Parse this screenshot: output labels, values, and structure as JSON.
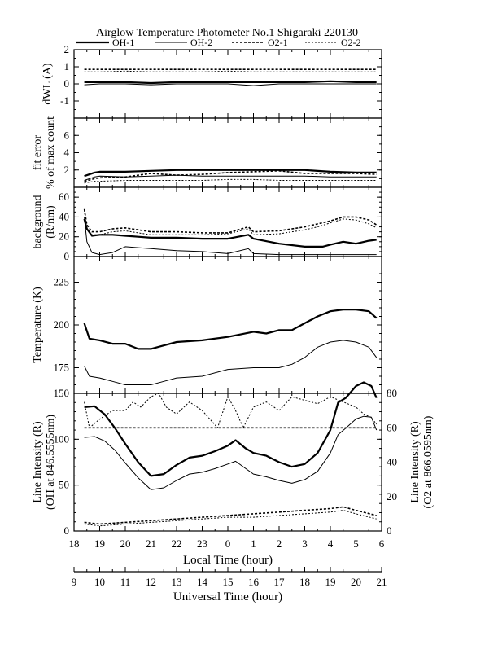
{
  "title": "Airglow Temperature Photometer No.1  Shigaraki  220130",
  "legend": [
    {
      "label": "OH-1",
      "style": "thick-solid"
    },
    {
      "label": "OH-2",
      "style": "thin-solid"
    },
    {
      "label": "O2-1",
      "style": "thick-dashed"
    },
    {
      "label": "O2-2",
      "style": "thin-dashed"
    }
  ],
  "axes": {
    "local_time_label": "Local Time (hour)",
    "local_time_ticks": [
      "18",
      "19",
      "20",
      "21",
      "22",
      "23",
      "0",
      "1",
      "2",
      "3",
      "4",
      "5",
      "6"
    ],
    "universal_time_label": "Universal Time (hour)",
    "universal_time_ticks": [
      "9",
      "10",
      "11",
      "12",
      "13",
      "14",
      "15",
      "16",
      "17",
      "18",
      "19",
      "20",
      "21"
    ]
  },
  "chart_data": [
    {
      "type": "line",
      "panel": "dWL",
      "ylabel": "dWL (A)",
      "ylim": [
        -2,
        2
      ],
      "yticks": [
        "2",
        "1",
        "0",
        "-1"
      ],
      "x_unit": "Universal Time (hour)",
      "series": [
        {
          "name": "OH-1",
          "x": [
            9.4,
            10,
            11,
            12,
            13,
            14,
            15,
            16,
            17,
            18,
            19,
            20,
            20.8
          ],
          "values": [
            0.1,
            0.1,
            0.1,
            0.05,
            0.1,
            0.1,
            0.1,
            0.1,
            0.1,
            0.1,
            0.15,
            0.1,
            0.1
          ]
        },
        {
          "name": "OH-2",
          "x": [
            9.4,
            10,
            11,
            12,
            13,
            14,
            15,
            16,
            17,
            18,
            19,
            20,
            20.8
          ],
          "values": [
            -0.05,
            0,
            0,
            -0.05,
            0,
            0,
            0,
            -0.1,
            0,
            0,
            0,
            0,
            0
          ]
        },
        {
          "name": "O2-1",
          "x": [
            9.4,
            10,
            11,
            12,
            13,
            14,
            15,
            16,
            17,
            18,
            19,
            20,
            20.8
          ],
          "values": [
            0.85,
            0.85,
            0.85,
            0.85,
            0.85,
            0.85,
            0.85,
            0.85,
            0.85,
            0.85,
            0.85,
            0.85,
            0.85
          ]
        },
        {
          "name": "O2-2",
          "x": [
            9.4,
            10,
            11,
            12,
            13,
            14,
            15,
            16,
            17,
            18,
            19,
            20,
            20.8
          ],
          "values": [
            0.7,
            0.7,
            0.75,
            0.7,
            0.7,
            0.7,
            0.75,
            0.7,
            0.7,
            0.7,
            0.7,
            0.7,
            0.7
          ]
        }
      ]
    },
    {
      "type": "line",
      "panel": "fit-error",
      "ylabel": "fit error",
      "ylabel2": "% of max count",
      "ylim": [
        0,
        8
      ],
      "yticks": [
        "6",
        "4",
        "2"
      ],
      "x_unit": "Universal Time (hour)",
      "series": [
        {
          "name": "OH-1",
          "x": [
            9.4,
            9.8,
            10,
            11,
            12,
            13,
            14,
            15,
            16,
            17,
            18,
            19,
            20,
            20.8
          ],
          "values": [
            1.3,
            1.7,
            1.8,
            1.8,
            1.9,
            2.0,
            2.0,
            2.0,
            2.0,
            2.0,
            2.0,
            1.8,
            1.7,
            1.7
          ]
        },
        {
          "name": "OH-2",
          "x": [
            9.4,
            9.8,
            10,
            11,
            12,
            13,
            14,
            15,
            16,
            17,
            18,
            19,
            20,
            20.8
          ],
          "values": [
            0.8,
            1.2,
            1.3,
            1.2,
            1.3,
            1.4,
            1.3,
            1.3,
            1.3,
            1.3,
            1.3,
            1.2,
            1.2,
            1.2
          ]
        },
        {
          "name": "O2-1",
          "x": [
            9.4,
            9.8,
            10,
            11,
            12,
            13,
            14,
            15,
            16,
            17,
            18,
            19,
            20,
            20.8
          ],
          "values": [
            0.7,
            1.0,
            1.1,
            1.2,
            1.6,
            1.4,
            1.5,
            1.7,
            1.8,
            1.9,
            1.6,
            1.6,
            1.6,
            1.5
          ]
        },
        {
          "name": "O2-2",
          "x": [
            9.4,
            9.8,
            10,
            11,
            12,
            13,
            14,
            15,
            16,
            17,
            18,
            19,
            20,
            20.8
          ],
          "values": [
            0.5,
            0.7,
            0.7,
            0.8,
            0.8,
            0.8,
            0.8,
            0.9,
            0.9,
            0.8,
            0.8,
            0.8,
            0.8,
            0.8
          ]
        }
      ]
    },
    {
      "type": "line",
      "panel": "background",
      "ylabel": "background",
      "ylabel2": "(R/nm)",
      "ylim": [
        0,
        70
      ],
      "yticks": [
        "60",
        "40",
        "20",
        "0"
      ],
      "x_unit": "Universal Time (hour)",
      "series": [
        {
          "name": "OH-1",
          "x": [
            9.4,
            9.5,
            9.7,
            10,
            10.5,
            11,
            11.5,
            12,
            13,
            14,
            15,
            15.8,
            16,
            17,
            18,
            18.7,
            19,
            19.5,
            20,
            20.5,
            20.8
          ],
          "values": [
            38,
            28,
            21,
            22,
            22,
            21,
            20,
            19,
            19,
            18,
            18,
            22,
            18,
            13,
            10,
            10,
            12,
            15,
            13,
            16,
            17
          ]
        },
        {
          "name": "OH-2",
          "x": [
            9.4,
            9.5,
            9.7,
            10,
            10.5,
            11,
            11.5,
            12,
            13,
            14,
            15,
            15.8,
            16,
            17,
            18,
            19,
            20,
            20.8
          ],
          "values": [
            40,
            15,
            4,
            2,
            4,
            10,
            9,
            8,
            6,
            5,
            3,
            8,
            3,
            2,
            2,
            2,
            2,
            2
          ]
        },
        {
          "name": "O2-1",
          "x": [
            9.4,
            9.5,
            9.7,
            10,
            10.5,
            11,
            11.5,
            12,
            13,
            14,
            15,
            15.8,
            16,
            17,
            18,
            18.5,
            19,
            19.5,
            20,
            20.5,
            20.8
          ],
          "values": [
            48,
            32,
            25,
            25,
            28,
            29,
            27,
            25,
            25,
            24,
            24,
            30,
            25,
            26,
            30,
            33,
            36,
            40,
            40,
            37,
            32
          ]
        },
        {
          "name": "O2-2",
          "x": [
            9.4,
            9.5,
            9.7,
            10,
            10.5,
            11,
            11.5,
            12,
            13,
            14,
            15,
            15.8,
            16,
            17,
            18,
            18.5,
            19,
            19.5,
            20,
            20.5,
            20.8
          ],
          "values": [
            47,
            28,
            22,
            22,
            25,
            26,
            24,
            22,
            22,
            22,
            23,
            28,
            22,
            23,
            27,
            30,
            34,
            38,
            37,
            33,
            29
          ]
        }
      ]
    },
    {
      "type": "line",
      "panel": "temperature",
      "ylabel": "Temperature (K)",
      "ylim": [
        160,
        240
      ],
      "yticks": [
        "225",
        "200",
        "175"
      ],
      "x_unit": "Universal Time (hour)",
      "series": [
        {
          "name": "OH-1",
          "x": [
            9.4,
            9.6,
            10,
            10.5,
            11,
            11.5,
            12,
            12.5,
            13,
            14,
            15,
            16,
            16.5,
            17,
            17.5,
            18,
            18.5,
            19,
            19.5,
            20,
            20.5,
            20.8
          ],
          "values": [
            201,
            192,
            191,
            189,
            189,
            186,
            186,
            188,
            190,
            191,
            193,
            196,
            195,
            197,
            197,
            201,
            205,
            208,
            209,
            209,
            208,
            204
          ]
        },
        {
          "name": "OH-2",
          "x": [
            9.4,
            9.6,
            10,
            10.5,
            11,
            11.5,
            12,
            12.5,
            13,
            14,
            15,
            16,
            16.5,
            17,
            17.5,
            18,
            18.5,
            19,
            19.5,
            20,
            20.5,
            20.8
          ],
          "values": [
            176,
            170,
            169,
            167,
            165,
            165,
            165,
            167,
            169,
            170,
            174,
            175,
            175,
            175,
            177,
            181,
            187,
            190,
            191,
            190,
            187,
            181
          ]
        }
      ]
    },
    {
      "type": "line",
      "panel": "line-intensity",
      "ylabel": "Line Intensity (R)",
      "ylabel2": "(OH at 846.5555nm)",
      "ylim": [
        0,
        150
      ],
      "yticks": [
        "150",
        "100",
        "50",
        "0"
      ],
      "y2label": "Line Intensity (R)",
      "y2label2": "(O2 at 866.0595nm)",
      "y2lim": [
        0,
        80
      ],
      "y2ticks": [
        "80",
        "60",
        "40",
        "20",
        "0"
      ],
      "x_unit": "Universal Time (hour)",
      "series": [
        {
          "name": "OH-1",
          "axis": "left",
          "x": [
            9.4,
            9.8,
            10.2,
            10.6,
            11,
            11.5,
            12,
            12.5,
            13,
            13.5,
            14,
            14.5,
            15,
            15.3,
            15.7,
            16,
            16.5,
            17,
            17.5,
            18,
            18.5,
            19,
            19.3,
            19.6,
            20,
            20.3,
            20.6,
            20.8
          ],
          "values": [
            135,
            136,
            127,
            112,
            95,
            75,
            60,
            62,
            72,
            80,
            82,
            87,
            93,
            99,
            90,
            85,
            82,
            75,
            70,
            73,
            85,
            110,
            140,
            145,
            158,
            162,
            158,
            145
          ]
        },
        {
          "name": "OH-2",
          "axis": "left",
          "x": [
            9.4,
            9.8,
            10.2,
            10.6,
            11,
            11.5,
            12,
            12.5,
            13,
            13.5,
            14,
            14.5,
            15,
            15.3,
            15.7,
            16,
            16.5,
            17,
            17.5,
            18,
            18.5,
            19,
            19.3,
            19.6,
            20,
            20.3,
            20.6,
            20.8
          ],
          "values": [
            102,
            103,
            98,
            88,
            74,
            58,
            45,
            47,
            55,
            62,
            64,
            68,
            73,
            76,
            68,
            62,
            59,
            55,
            52,
            56,
            65,
            85,
            105,
            112,
            122,
            125,
            124,
            110
          ]
        },
        {
          "name": "O2-1",
          "axis": "right",
          "x": [
            9.4,
            10,
            11,
            12,
            13,
            14,
            15,
            16,
            17,
            18,
            19,
            19.5,
            20,
            20.8
          ],
          "values": [
            5,
            4,
            5,
            6,
            7,
            8,
            9,
            10,
            11,
            12,
            13,
            14,
            12,
            9
          ]
        },
        {
          "name": "O2-2",
          "axis": "right",
          "x": [
            9.4,
            10,
            11,
            12,
            13,
            14,
            15,
            16,
            17,
            18,
            19,
            19.5,
            20,
            20.8
          ],
          "values": [
            4,
            3,
            4,
            5,
            6,
            7,
            8,
            8,
            9,
            10,
            11,
            12,
            10,
            7
          ]
        },
        {
          "name": "O2-1",
          "axis": "right",
          "x": [
            9.4,
            9.5,
            20.5,
            20.8
          ],
          "values": [
            60,
            60,
            60,
            60
          ]
        },
        {
          "name": "O2-2",
          "axis": "right",
          "x": [
            9.4,
            9.6,
            10,
            10.5,
            11,
            11.3,
            11.6,
            12,
            12.3,
            12.6,
            13,
            13.5,
            14,
            14.3,
            14.6,
            15,
            15.3,
            15.6,
            16,
            16.5,
            17,
            17.5,
            18,
            18.5,
            19,
            19.5,
            20,
            20.3,
            20.6,
            20.8
          ],
          "values": [
            75,
            60,
            65,
            70,
            70,
            75,
            72,
            78,
            80,
            72,
            68,
            75,
            70,
            65,
            60,
            78,
            70,
            60,
            72,
            75,
            70,
            78,
            76,
            74,
            78,
            75,
            72,
            68,
            66,
            62
          ]
        }
      ]
    }
  ]
}
